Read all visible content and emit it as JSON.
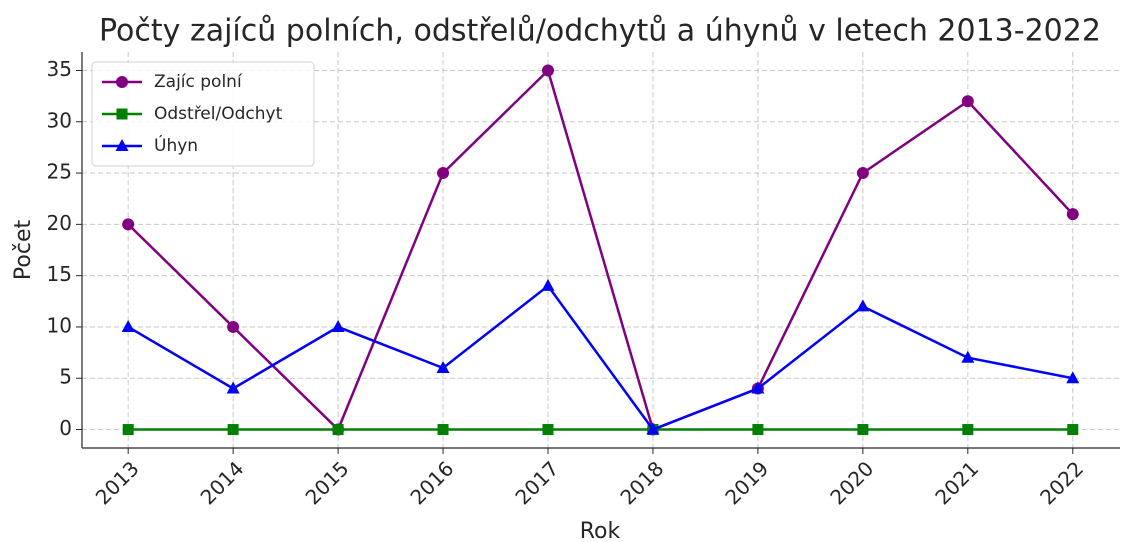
{
  "chart_data": {
    "type": "line",
    "title": "Počty zajíců polních, odstřelů/odchytů a úhynů v letech 2013-2022",
    "xlabel": "Rok",
    "ylabel": "Počet",
    "x": [
      2013,
      2014,
      2015,
      2016,
      2017,
      2018,
      2019,
      2020,
      2021,
      2022
    ],
    "series": [
      {
        "name": "Zajíc polní",
        "color": "#800080",
        "marker": "circle",
        "values": [
          20,
          10,
          0,
          25,
          35,
          0,
          4,
          25,
          32,
          21
        ]
      },
      {
        "name": "Odstřel/Odchyt",
        "color": "#008000",
        "marker": "square",
        "values": [
          0,
          0,
          0,
          0,
          0,
          0,
          0,
          0,
          0,
          0
        ]
      },
      {
        "name": "Úhyn",
        "color": "#0000ff",
        "marker": "triangle",
        "values": [
          10,
          4,
          10,
          6,
          14,
          0,
          4,
          12,
          7,
          5
        ]
      }
    ],
    "xlim": [
      2012.56,
      2022.45
    ],
    "xticks": [
      2013,
      2014,
      2015,
      2016,
      2017,
      2018,
      2019,
      2020,
      2021,
      2022
    ],
    "ylim": [
      -1.8,
      36.8
    ],
    "yticks": [
      0,
      5,
      10,
      15,
      20,
      25,
      30,
      35
    ],
    "grid": true,
    "legend": "upper left"
  }
}
